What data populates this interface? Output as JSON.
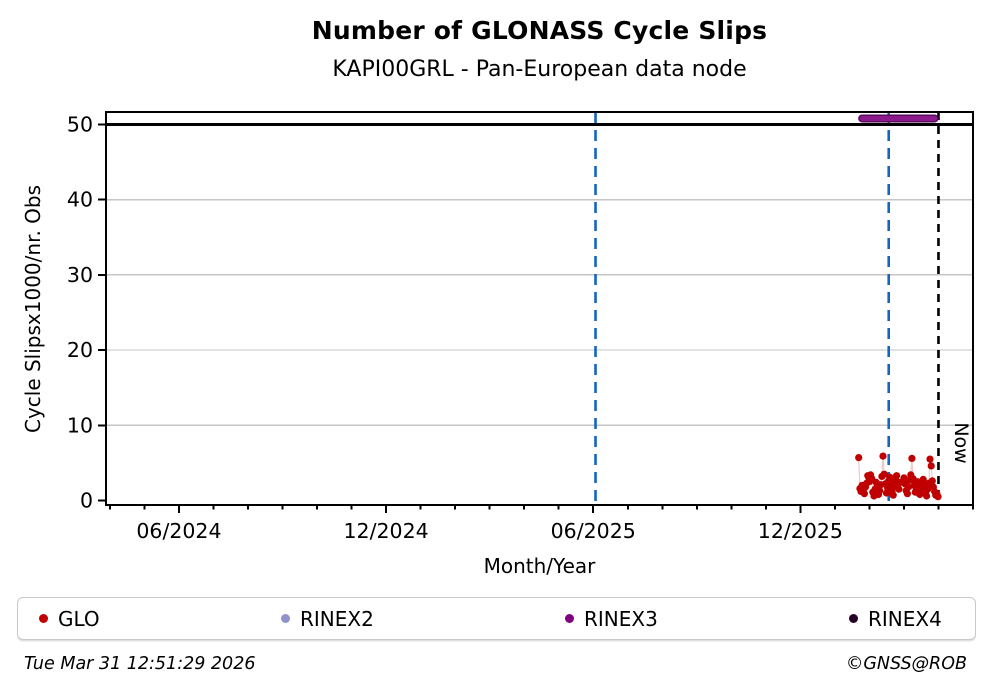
{
  "footer": {
    "timestamp": "Tue Mar 31 12:51:29 2026",
    "credit": "©GNSS@ROB"
  },
  "legend": {
    "items": [
      {
        "label": "GLO",
        "color": "#c00000"
      },
      {
        "label": "RINEX2",
        "color": "#9191ce"
      },
      {
        "label": "RINEX3",
        "color": "#800080"
      },
      {
        "label": "RINEX4",
        "color": "#260226"
      }
    ]
  },
  "chart_data": {
    "type": "scatter",
    "title": "Number of GLONASS Cycle Slips",
    "subtitle": "KAPI00GRL - Pan-European data node",
    "xlabel": "Month/Year",
    "ylabel": "Cycle Slipsx1000/nr. Obs",
    "ylim": [
      -0.6,
      51.66
    ],
    "y_ticks": [
      0,
      10,
      20,
      30,
      40,
      50
    ],
    "x_range": [
      "2024-03-28",
      "2026-05-01"
    ],
    "x_ticks": [
      {
        "label": "06/2024",
        "date": "2024-06-01"
      },
      {
        "label": "12/2024",
        "date": "2024-12-01"
      },
      {
        "label": "06/2025",
        "date": "2025-06-01"
      },
      {
        "label": "12/2025",
        "date": "2025-12-01"
      }
    ],
    "grid": "horizontal",
    "grid_color": "#c6c6c6",
    "threshold_line": {
      "value": 50,
      "color": "#000000"
    },
    "event_lines": [
      {
        "date": "2025-06-03",
        "color": "#1565c0",
        "style": "dashed",
        "label": ""
      },
      {
        "date": "2026-02-18",
        "color": "#1565c0",
        "style": "dashed",
        "label": ""
      },
      {
        "date": "2026-04-01",
        "color": "#000000",
        "style": "dashed",
        "label": "Now"
      }
    ],
    "availability_bars": [
      {
        "name": "RINEX3",
        "start": "2026-01-25",
        "end": "2026-03-28",
        "value": 50.8,
        "color": "#8c1a8c",
        "edge_color": "#5a0b5a"
      }
    ],
    "series": [
      {
        "name": "GLO",
        "color": "#c00000",
        "line_color": "rgba(192,0,0,0.22)",
        "points": [
          [
            "2026-01-22",
            5.7
          ],
          [
            "2026-01-23",
            1.6
          ],
          [
            "2026-01-24",
            1.2
          ],
          [
            "2026-01-25",
            2.0
          ],
          [
            "2026-01-26",
            1.4
          ],
          [
            "2026-01-27",
            0.9
          ],
          [
            "2026-01-28",
            1.8
          ],
          [
            "2026-01-29",
            2.3
          ],
          [
            "2026-01-30",
            3.3
          ],
          [
            "2026-01-31",
            3.0
          ],
          [
            "2026-02-01",
            2.5
          ],
          [
            "2026-02-02",
            3.4
          ],
          [
            "2026-02-03",
            2.9
          ],
          [
            "2026-02-04",
            1.1
          ],
          [
            "2026-02-05",
            0.6
          ],
          [
            "2026-02-06",
            1.5
          ],
          [
            "2026-02-07",
            2.4
          ],
          [
            "2026-02-08",
            2.0
          ],
          [
            "2026-02-09",
            0.8
          ],
          [
            "2026-02-10",
            1.3
          ],
          [
            "2026-02-11",
            2.1
          ],
          [
            "2026-02-12",
            3.2
          ],
          [
            "2026-02-13",
            5.9
          ],
          [
            "2026-02-14",
            3.5
          ],
          [
            "2026-02-15",
            2.2
          ],
          [
            "2026-02-16",
            1.0
          ],
          [
            "2026-02-17",
            1.7
          ],
          [
            "2026-02-18",
            2.6
          ],
          [
            "2026-02-19",
            3.1
          ],
          [
            "2026-02-20",
            2.3
          ],
          [
            "2026-02-21",
            1.2
          ],
          [
            "2026-02-22",
            0.7
          ],
          [
            "2026-02-23",
            1.9
          ],
          [
            "2026-02-24",
            2.8
          ],
          [
            "2026-02-25",
            3.3
          ],
          [
            "2026-02-26",
            2.1
          ],
          [
            "2026-02-27",
            1.5
          ],
          [
            "2026-02-28",
            2.4
          ],
          [
            "2026-03-01",
            3.0
          ],
          [
            "2026-03-02",
            2.2
          ],
          [
            "2026-03-03",
            1.3
          ],
          [
            "2026-03-04",
            0.9
          ],
          [
            "2026-03-05",
            1.8
          ],
          [
            "2026-03-06",
            2.7
          ],
          [
            "2026-03-07",
            3.4
          ],
          [
            "2026-03-08",
            5.6
          ],
          [
            "2026-03-09",
            2.9
          ],
          [
            "2026-03-10",
            2.0
          ],
          [
            "2026-03-11",
            1.1
          ],
          [
            "2026-03-12",
            1.6
          ],
          [
            "2026-03-13",
            2.5
          ],
          [
            "2026-03-14",
            1.9
          ],
          [
            "2026-03-15",
            0.8
          ],
          [
            "2026-03-16",
            1.4
          ],
          [
            "2026-03-17",
            2.2
          ],
          [
            "2026-03-18",
            2.8
          ],
          [
            "2026-03-19",
            1.7
          ],
          [
            "2026-03-20",
            1.0
          ],
          [
            "2026-03-21",
            0.6
          ],
          [
            "2026-03-22",
            1.5
          ],
          [
            "2026-03-23",
            2.3
          ],
          [
            "2026-03-24",
            5.5
          ],
          [
            "2026-03-25",
            4.6
          ],
          [
            "2026-03-26",
            2.6
          ],
          [
            "2026-03-27",
            1.8
          ],
          [
            "2026-03-28",
            1.2
          ],
          [
            "2026-03-29",
            0.7
          ],
          [
            "2026-03-30",
            0.9
          ],
          [
            "2026-03-31",
            0.5
          ]
        ]
      }
    ],
    "legend_position": "bottom"
  }
}
